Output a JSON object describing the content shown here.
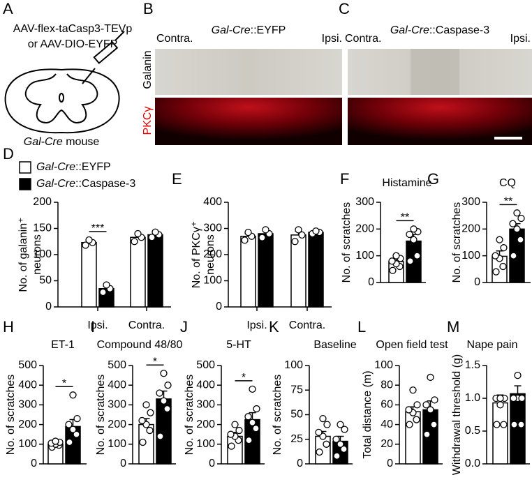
{
  "panels": {
    "A": {
      "label": "A",
      "line1": "AAV-flex-taCasp3-TEVp",
      "line2": "or AAV-DIO-EYFP",
      "mouse": [
        "Gal-Cre",
        " mouse"
      ]
    },
    "B": {
      "label": "B",
      "title": [
        "Gal-Cre",
        "::EYFP"
      ],
      "left": "Contra.",
      "right": "Ipsi.",
      "row1": "Galanin",
      "row2": "PKCγ"
    },
    "C": {
      "label": "C",
      "title": [
        "Gal-Cre",
        "::Caspase-3"
      ],
      "left": "Contra.",
      "right": "Ipsi."
    }
  },
  "chart_data": [
    {
      "type": "bar",
      "label": "D",
      "ylabel": [
        "No. of galanin⁺",
        "neurons"
      ],
      "categories": [
        "Ipsi.",
        "Contra."
      ],
      "legend": "upper left",
      "ylim": [
        0,
        200
      ],
      "yticks": [
        0,
        50,
        100,
        150,
        200
      ],
      "significance": "***",
      "series": [
        {
          "name": "Gal-Cre::EYFP",
          "color": "#ffffff",
          "values": [
            123,
            133
          ],
          "errors": [
            5,
            7
          ],
          "points": [
            [
              118,
              123,
              128
            ],
            [
              125,
              133,
              140
            ]
          ]
        },
        {
          "name": "Gal-Cre::Caspase-3",
          "color": "#000000",
          "values": [
            35,
            138
          ],
          "errors": [
            5,
            5
          ],
          "points": [
            [
              28,
              35,
              42
            ],
            [
              133,
              138,
              143
            ]
          ]
        }
      ]
    },
    {
      "type": "bar",
      "label": "E",
      "ylabel": [
        "No. of PKCγ⁺",
        "neurons"
      ],
      "categories": [
        "Ipsi.",
        "Contra."
      ],
      "ylim": [
        0,
        400
      ],
      "yticks": [
        0,
        100,
        200,
        300,
        400
      ],
      "series": [
        {
          "color": "#ffffff",
          "values": [
            270,
            275
          ],
          "errors": [
            10,
            15
          ],
          "points": [
            [
              255,
              270,
              285
            ],
            [
              250,
              275,
              295
            ]
          ]
        },
        {
          "color": "#000000",
          "values": [
            280,
            285
          ],
          "errors": [
            12,
            5
          ],
          "points": [
            [
              265,
              280,
              295
            ],
            [
              280,
              285,
              290
            ]
          ]
        }
      ]
    },
    {
      "type": "bar",
      "label": "F",
      "title": "Histamine",
      "ylabel": [
        "No. of scratches"
      ],
      "ylim": [
        0,
        300
      ],
      "yticks": [
        0,
        100,
        200,
        300
      ],
      "significance": "**",
      "series": [
        {
          "color": "#ffffff",
          "values": [
            78
          ],
          "errors": [
            10
          ],
          "points": [
            [
              45,
              60,
              70,
              80,
              90,
              100
            ]
          ]
        },
        {
          "color": "#000000",
          "values": [
            155
          ],
          "errors": [
            25
          ],
          "points": [
            [
              80,
              100,
              160,
              180,
              190,
              200
            ]
          ]
        }
      ]
    },
    {
      "type": "bar",
      "label": "G",
      "title": "CQ",
      "ylabel": [
        "No. of scratches"
      ],
      "ylim": [
        0,
        300
      ],
      "yticks": [
        0,
        100,
        200,
        300
      ],
      "significance": "**",
      "series": [
        {
          "color": "#ffffff",
          "values": [
            98
          ],
          "errors": [
            20
          ],
          "points": [
            [
              40,
              60,
              90,
              100,
              130,
              160
            ]
          ]
        },
        {
          "color": "#000000",
          "values": [
            200
          ],
          "errors": [
            20
          ],
          "points": [
            [
              100,
              160,
              200,
              220,
              240,
              260
            ]
          ]
        }
      ]
    },
    {
      "type": "bar",
      "label": "H",
      "title": "ET-1",
      "ylabel": [
        "No. of scratches"
      ],
      "ylim": [
        0,
        500
      ],
      "yticks": [
        0,
        100,
        200,
        300,
        400,
        500
      ],
      "significance": "*",
      "series": [
        {
          "color": "#ffffff",
          "values": [
            100
          ],
          "errors": [
            10
          ],
          "points": [
            [
              85,
              95,
              100,
              105,
              110,
              115
            ]
          ]
        },
        {
          "color": "#000000",
          "values": [
            190
          ],
          "errors": [
            35
          ],
          "points": [
            [
              110,
              150,
              175,
              200,
              230,
              350
            ]
          ]
        }
      ]
    },
    {
      "type": "bar",
      "label": "I",
      "title": "Compound 48/80",
      "ylabel": [
        "No. of scratches"
      ],
      "ylim": [
        0,
        500
      ],
      "yticks": [
        0,
        100,
        200,
        300,
        400,
        500
      ],
      "significance": "*",
      "series": [
        {
          "color": "#ffffff",
          "values": [
            200
          ],
          "errors": [
            30
          ],
          "points": [
            [
              110,
              170,
              200,
              220,
              260,
              300
            ]
          ]
        },
        {
          "color": "#000000",
          "values": [
            330
          ],
          "errors": [
            40
          ],
          "points": [
            [
              140,
              280,
              320,
              360,
              400,
              460
            ]
          ]
        }
      ]
    },
    {
      "type": "bar",
      "label": "J",
      "title": "5-HT",
      "ylabel": [
        "No. of scratches"
      ],
      "ylim": [
        0,
        500
      ],
      "yticks": [
        0,
        100,
        200,
        300,
        400,
        500
      ],
      "significance": "*",
      "series": [
        {
          "color": "#ffffff",
          "values": [
            140
          ],
          "errors": [
            20
          ],
          "points": [
            [
              90,
              120,
              140,
              150,
              170,
              200
            ]
          ]
        },
        {
          "color": "#000000",
          "values": [
            225
          ],
          "errors": [
            35
          ],
          "points": [
            [
              120,
              180,
              210,
              240,
              280,
              380
            ]
          ]
        }
      ]
    },
    {
      "type": "bar",
      "label": "K",
      "title": "Baseline",
      "ylabel": [
        "No. of scratches"
      ],
      "ylim": [
        0,
        100
      ],
      "yticks": [
        0,
        25,
        50,
        75,
        100
      ],
      "series": [
        {
          "color": "#ffffff",
          "values": [
            28
          ],
          "errors": [
            5
          ],
          "points": [
            [
              12,
              20,
              28,
              32,
              40,
              46
            ]
          ]
        },
        {
          "color": "#000000",
          "values": [
            23
          ],
          "errors": [
            5
          ],
          "points": [
            [
              8,
              15,
              20,
              25,
              35,
              40
            ]
          ]
        }
      ]
    },
    {
      "type": "bar",
      "label": "L",
      "title": "Open field test",
      "ylabel": [
        "Total distance (m)"
      ],
      "ylim": [
        0,
        100
      ],
      "yticks": [
        0,
        20,
        40,
        60,
        80,
        100
      ],
      "series": [
        {
          "color": "#ffffff",
          "values": [
            53
          ],
          "errors": [
            5
          ],
          "points": [
            [
              40,
              45,
              52,
              55,
              60,
              75
            ]
          ]
        },
        {
          "color": "#000000",
          "values": [
            55
          ],
          "errors": [
            9
          ],
          "points": [
            [
              30,
              40,
              55,
              60,
              65,
              88
            ]
          ]
        }
      ]
    },
    {
      "type": "bar",
      "label": "M",
      "title": "Nape pain",
      "ylabel": [
        "Withdrawal threshold (g)"
      ],
      "ylim": [
        0,
        1.5
      ],
      "yticks": [
        {
          "value": 0,
          "label": "0.0"
        },
        0.5,
        {
          "value": 1,
          "label": "1.0"
        },
        1.5
      ],
      "series": [
        {
          "color": "#ffffff",
          "values": [
            0.93
          ],
          "errors": [
            0.12
          ],
          "points": [
            [
              0.6,
              0.6,
              0.9,
              1.0,
              1.0,
              1.0
            ]
          ]
        },
        {
          "color": "#000000",
          "values": [
            1.07
          ],
          "errors": [
            0.12
          ],
          "points": [
            [
              0.6,
              0.6,
              1.0,
              1.0,
              1.0,
              1.35
            ]
          ]
        }
      ]
    }
  ]
}
